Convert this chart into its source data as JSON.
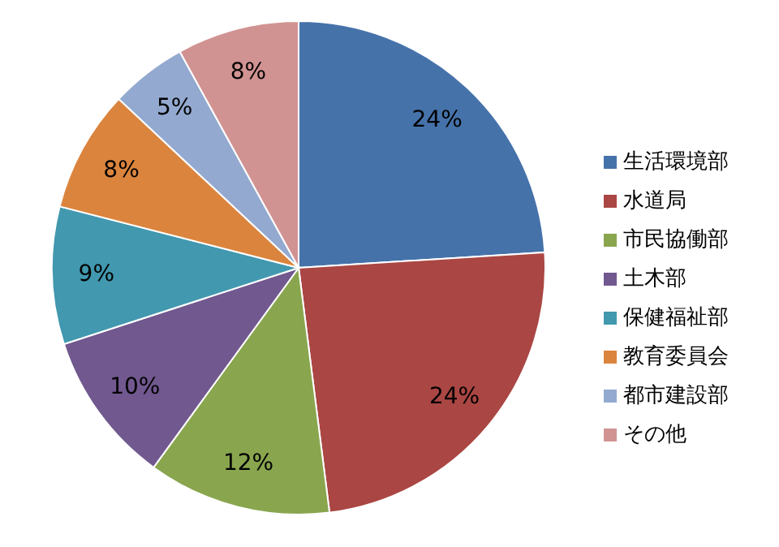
{
  "chart_data": {
    "type": "pie",
    "categories": [
      "生活環境部",
      "水道局",
      "市民協働部",
      "土木部",
      "保健福祉部",
      "教育委員会",
      "都市建設部",
      "その他"
    ],
    "values": [
      24,
      24,
      12,
      10,
      9,
      8,
      5,
      8
    ],
    "colors": [
      "#4672aa",
      "#aa4643",
      "#89a54e",
      "#71588f",
      "#4198af",
      "#db843d",
      "#93a9cf",
      "#d19392"
    ],
    "value_labels": [
      "24%",
      "24%",
      "12%",
      "10%",
      "9%",
      "8%",
      "5%",
      "8%"
    ],
    "legend": "right"
  }
}
